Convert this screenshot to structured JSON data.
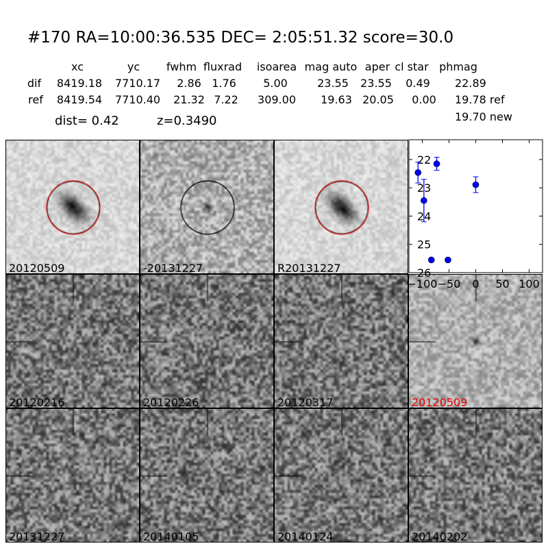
{
  "header": {
    "title": "#170   RA=10:00:36.535 DEC= 2:05:51.32      score=30.0",
    "columns": [
      "xc",
      "yc",
      "fwhm",
      "fluxrad",
      "isoarea",
      "mag auto",
      "aper",
      "cl star",
      "phmag"
    ],
    "rows": [
      {
        "label": "dif",
        "values": [
          "8419.18",
          "7710.17",
          "2.86",
          "1.76",
          "5.00",
          "23.55",
          "23.55",
          "0.49",
          "22.89"
        ]
      },
      {
        "label": "ref",
        "values": [
          "8419.54",
          "7710.40",
          "21.32",
          "7.22",
          "309.00",
          "19.63",
          "20.05",
          "0.00",
          "19.78 ref"
        ]
      }
    ],
    "extra_phmag": "19.70 new",
    "dist": "dist=  0.42",
    "z": "z=0.3490"
  },
  "stamps": [
    {
      "label": "20120509",
      "type": "galaxy",
      "circle": "red"
    },
    {
      "label": "-20131227",
      "type": "diff",
      "circle": "black"
    },
    {
      "label": "R20131227",
      "type": "galaxy",
      "circle": "red"
    }
  ],
  "epochs": [
    {
      "label": "20120216",
      "highlight": false
    },
    {
      "label": "20120226",
      "highlight": false
    },
    {
      "label": "20120317",
      "highlight": false
    },
    {
      "label": "20120509",
      "highlight": true
    },
    {
      "label": "20131227",
      "highlight": false
    },
    {
      "label": "20140105",
      "highlight": false
    },
    {
      "label": "20140124",
      "highlight": false
    },
    {
      "label": "20140202",
      "highlight": false
    }
  ],
  "colors": {
    "points": "#0000ff",
    "highlight_label": "#ff0000",
    "circle_red": "#cc0000"
  },
  "chart_data": {
    "type": "scatter",
    "xlim": [
      -125,
      125
    ],
    "ylim": [
      26,
      21.3
    ],
    "y_inverted": true,
    "xticks": [
      -100,
      -50,
      0,
      50,
      100
    ],
    "yticks": [
      22,
      23,
      24,
      25,
      26
    ],
    "points": [
      {
        "x": -108,
        "y": 22.46,
        "err": 0.37
      },
      {
        "x": -97,
        "y": 23.45,
        "err": 0.75
      },
      {
        "x": -83,
        "y": 25.55,
        "err": 0.05
      },
      {
        "x": -73,
        "y": 22.15,
        "err": 0.23
      },
      {
        "x": -52,
        "y": 25.55,
        "err": 0.05
      },
      {
        "x": 0,
        "y": 22.89,
        "err": 0.28
      }
    ]
  }
}
